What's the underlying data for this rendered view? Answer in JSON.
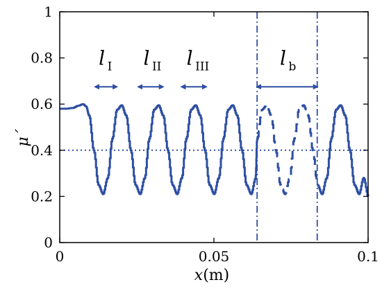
{
  "chart_data": {
    "type": "line",
    "xlabel": {
      "var": "x",
      "unit": "(m)"
    },
    "ylabel": "μ´",
    "xlim": [
      0,
      0.1
    ],
    "ylim": [
      0,
      1
    ],
    "xticks": [
      0,
      0.05,
      0.1
    ],
    "xtick_labels": [
      "0",
      "0.05",
      "0.1"
    ],
    "yticks": [
      0,
      0.2,
      0.4,
      0.6,
      0.8,
      1
    ],
    "ytick_labels": [
      "0",
      "0.2",
      "0.4",
      "0.6",
      "0.8",
      "1"
    ],
    "grid": false,
    "color": "#2e4fa3",
    "series": [
      {
        "line_style": "solid",
        "x": [
          0,
          0.002,
          0.004,
          0.006,
          0.0075,
          0.0085,
          0.0095,
          0.011,
          0.0125,
          0.014,
          0.0155,
          0.017,
          0.0185,
          0.02,
          0.0215,
          0.023,
          0.0245,
          0.026,
          0.0275,
          0.029,
          0.0305,
          0.032,
          0.0335,
          0.035,
          0.0365,
          0.038,
          0.0395,
          0.041,
          0.0425,
          0.044,
          0.0455,
          0.047,
          0.0485,
          0.05,
          0.0515,
          0.053,
          0.0545,
          0.056,
          0.0575,
          0.059,
          0.0605,
          0.062,
          0.0635,
          0.064
        ],
        "y": [
          0.58,
          0.58,
          0.583,
          0.593,
          0.6,
          0.59,
          0.55,
          0.4,
          0.25,
          0.21,
          0.28,
          0.45,
          0.575,
          0.595,
          0.55,
          0.4,
          0.25,
          0.21,
          0.28,
          0.45,
          0.575,
          0.595,
          0.55,
          0.4,
          0.25,
          0.21,
          0.28,
          0.45,
          0.575,
          0.595,
          0.55,
          0.4,
          0.25,
          0.21,
          0.28,
          0.45,
          0.575,
          0.595,
          0.55,
          0.4,
          0.25,
          0.21,
          0.28,
          0.45
        ]
      },
      {
        "line_style": "dashed",
        "x": [
          0.064,
          0.0655,
          0.067,
          0.0685,
          0.07,
          0.0715,
          0.073,
          0.0745,
          0.076,
          0.0775,
          0.079,
          0.0805,
          0.082,
          0.0835
        ],
        "y": [
          0.45,
          0.575,
          0.595,
          0.55,
          0.4,
          0.25,
          0.21,
          0.28,
          0.45,
          0.575,
          0.595,
          0.55,
          0.4,
          0.25
        ]
      },
      {
        "line_style": "solid",
        "x": [
          0.0835,
          0.085,
          0.0865,
          0.088,
          0.0895,
          0.091,
          0.0925,
          0.094,
          0.0955,
          0.097,
          0.0985,
          0.1
        ],
        "y": [
          0.25,
          0.21,
          0.28,
          0.45,
          0.575,
          0.595,
          0.55,
          0.4,
          0.25,
          0.21,
          0.28,
          0.2
        ]
      }
    ],
    "reference_lines": [
      {
        "orientation": "horizontal",
        "value": 0.4,
        "style": "dotted"
      },
      {
        "orientation": "vertical",
        "value": 0.064,
        "style": "dash-dot"
      },
      {
        "orientation": "vertical",
        "value": 0.0835,
        "style": "dash-dot"
      }
    ],
    "annotations": [
      {
        "symbol": "l",
        "subscript": "I",
        "x_range": [
          0.0115,
          0.0185
        ],
        "y": 0.675,
        "label_y": 0.77
      },
      {
        "symbol": "l",
        "subscript": "II",
        "x_range": [
          0.0255,
          0.0335
        ],
        "y": 0.675,
        "label_y": 0.77
      },
      {
        "symbol": "l",
        "subscript": "III",
        "x_range": [
          0.0395,
          0.0475
        ],
        "y": 0.675,
        "label_y": 0.77
      },
      {
        "symbol": "l",
        "subscript": "b",
        "x_range": [
          0.064,
          0.0835
        ],
        "y": 0.675,
        "label_y": 0.77
      }
    ]
  }
}
